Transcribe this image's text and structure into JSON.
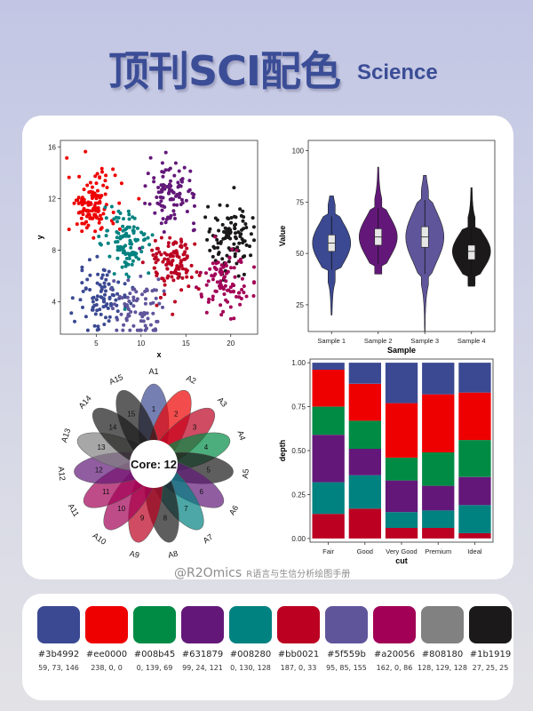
{
  "header": {
    "title": "顶刊SCI配色",
    "subtitle": "Science"
  },
  "watermark": {
    "handle": "@R2Omics",
    "tagline": "R语言与生信分析绘图手册"
  },
  "palette": [
    {
      "hex": "#3b4992",
      "rgb": "59, 73, 146"
    },
    {
      "hex": "#ee0000",
      "rgb": "238, 0, 0"
    },
    {
      "hex": "#008b45",
      "rgb": "0, 139, 69"
    },
    {
      "hex": "#631879",
      "rgb": "99, 24, 121"
    },
    {
      "hex": "#008280",
      "rgb": "0, 130, 128"
    },
    {
      "hex": "#bb0021",
      "rgb": "187, 0, 33"
    },
    {
      "hex": "#5f559b",
      "rgb": "95, 85, 155"
    },
    {
      "hex": "#a20056",
      "rgb": "162, 0, 86"
    },
    {
      "hex": "#808180",
      "rgb": "128, 129, 128"
    },
    {
      "hex": "#1b1919",
      "rgb": "27, 25, 25"
    }
  ],
  "chart_data": [
    {
      "type": "scatter",
      "xlabel": "x",
      "ylabel": "y",
      "xlim": [
        1,
        23
      ],
      "ylim": [
        1.5,
        16.5
      ],
      "xticks": [
        5,
        10,
        15,
        20
      ],
      "yticks": [
        4,
        8,
        12,
        16
      ],
      "clusters": [
        {
          "color": "#ee0000",
          "cx": 4.5,
          "cy": 11.5,
          "n": 120
        },
        {
          "color": "#631879",
          "cx": 13.5,
          "cy": 12.5,
          "n": 100
        },
        {
          "color": "#1b1919",
          "cx": 20,
          "cy": 9,
          "n": 110
        },
        {
          "color": "#008280",
          "cx": 8.5,
          "cy": 8.5,
          "n": 110
        },
        {
          "color": "#bb0021",
          "cx": 13.5,
          "cy": 7,
          "n": 110
        },
        {
          "color": "#a20056",
          "cx": 19.5,
          "cy": 5.5,
          "n": 90
        },
        {
          "color": "#3b4992",
          "cx": 5.5,
          "cy": 4.5,
          "n": 90
        },
        {
          "color": "#5f559b",
          "cx": 9.5,
          "cy": 3.5,
          "n": 80
        }
      ]
    },
    {
      "type": "violin",
      "xlabel": "Sample",
      "ylabel": "Value",
      "ylim": [
        12,
        105
      ],
      "yticks": [
        25,
        50,
        75,
        100
      ],
      "categories": [
        "Sample 1",
        "Sample 2",
        "Sample 3",
        "Sample 4"
      ],
      "colors": [
        "#3b4992",
        "#631879",
        "#5f559b",
        "#1b1919"
      ],
      "box": [
        {
          "q1": 51,
          "median": 55,
          "q3": 59,
          "min": 42,
          "max": 68,
          "lo": 20,
          "hi": 78
        },
        {
          "q1": 54,
          "median": 58,
          "q3": 62,
          "min": 45,
          "max": 72,
          "lo": 40,
          "hi": 92
        },
        {
          "q1": 53,
          "median": 58,
          "q3": 63,
          "min": 40,
          "max": 76,
          "lo": 12,
          "hi": 88
        },
        {
          "q1": 47,
          "median": 51,
          "q3": 54,
          "min": 40,
          "max": 62,
          "lo": 34,
          "hi": 82
        }
      ]
    },
    {
      "type": "flower",
      "center_label": "Core: 12",
      "petals": [
        "A1",
        "A2",
        "A3",
        "A4",
        "A5",
        "A6",
        "A7",
        "A8",
        "A9",
        "A10",
        "A11",
        "A12",
        "A13",
        "A14",
        "A15"
      ],
      "counts": [
        "1",
        "2",
        "3",
        "4",
        "5",
        "6",
        "7",
        "8",
        "9",
        "10",
        "11",
        "12",
        "13",
        "14",
        "15"
      ],
      "colors": [
        "#3b4992",
        "#ee0000",
        "#bb0021",
        "#008b45",
        "#1b1919",
        "#631879",
        "#008280",
        "#1b1919",
        "#bb0021",
        "#a20056",
        "#a20056",
        "#631879",
        "#808180",
        "#1b1919",
        "#1b1919"
      ]
    },
    {
      "type": "bar",
      "stacked": true,
      "xlabel": "cut",
      "ylabel": "depth",
      "ylim": [
        0,
        1
      ],
      "yticks": [
        "0.00",
        "0.25",
        "0.50",
        "0.75",
        "1.00"
      ],
      "categories": [
        "Fair",
        "Good",
        "Very Good",
        "Premium",
        "Ideal"
      ],
      "series": [
        {
          "color": "#bb0021",
          "values": [
            0.14,
            0.17,
            0.06,
            0.06,
            0.03
          ]
        },
        {
          "color": "#008280",
          "values": [
            0.18,
            0.19,
            0.09,
            0.1,
            0.16
          ]
        },
        {
          "color": "#631879",
          "values": [
            0.27,
            0.15,
            0.18,
            0.14,
            0.16
          ]
        },
        {
          "color": "#008b45",
          "values": [
            0.16,
            0.16,
            0.13,
            0.19,
            0.21
          ]
        },
        {
          "color": "#ee0000",
          "values": [
            0.21,
            0.21,
            0.31,
            0.33,
            0.27
          ]
        },
        {
          "color": "#3b4992",
          "values": [
            0.04,
            0.12,
            0.23,
            0.18,
            0.17
          ]
        }
      ]
    }
  ]
}
